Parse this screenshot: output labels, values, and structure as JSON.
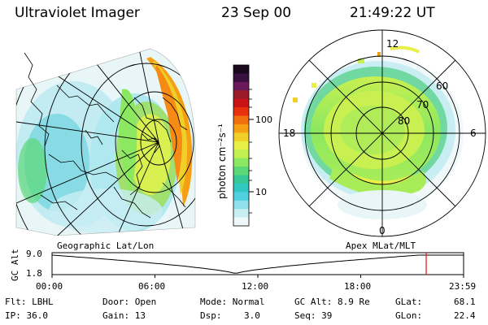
{
  "header": {
    "instrument": "Ultraviolet Imager",
    "date": "23 Sep 00",
    "time": "21:49:22 UT"
  },
  "colorbar": {
    "label": "photon cm⁻²s⁻¹",
    "tick_labels": [
      "100",
      "10"
    ],
    "colors": [
      "#1a0a1e",
      "#3a1040",
      "#6a1a5a",
      "#9a1a2a",
      "#c81414",
      "#e83010",
      "#f07010",
      "#f5a014",
      "#f0d028",
      "#e8f048",
      "#c0f050",
      "#8ce860",
      "#5cd878",
      "#38c898",
      "#30c8c0",
      "#50d0e0",
      "#90e0ec",
      "#c8eef4",
      "#eef8fa"
    ]
  },
  "panels": {
    "left_label": "Geographic Lat/Lon",
    "right_label": "Apex MLat/MLT",
    "polar_ticks": {
      "top": "12",
      "left": "18",
      "right": "6",
      "bottom": "0",
      "lat60": "60",
      "lat70": "70",
      "lat80": "80"
    }
  },
  "timeline": {
    "ylabel": "GC Alt",
    "y_ticks": [
      "9.0",
      "1.8"
    ],
    "x_ticks": [
      "00:00",
      "06:00",
      "12:00",
      "18:00",
      "23:59"
    ],
    "marker_hour": 21.82,
    "marker_color": "#e01010"
  },
  "info": {
    "flt": "Flt: LBHL",
    "ip": "IP: 36.0",
    "door": "Door: Open",
    "gain": "Gain: 13",
    "mode": "Mode: Normal",
    "dsp_label": "Dsp:",
    "dsp_value": "3.0",
    "gcalt": "GC Alt: 8.9 Re",
    "seq": "Seq: 39",
    "glat_label": "GLat:",
    "glat_value": "68.1",
    "glon_label": "GLon:",
    "glon_value": "22.4"
  }
}
